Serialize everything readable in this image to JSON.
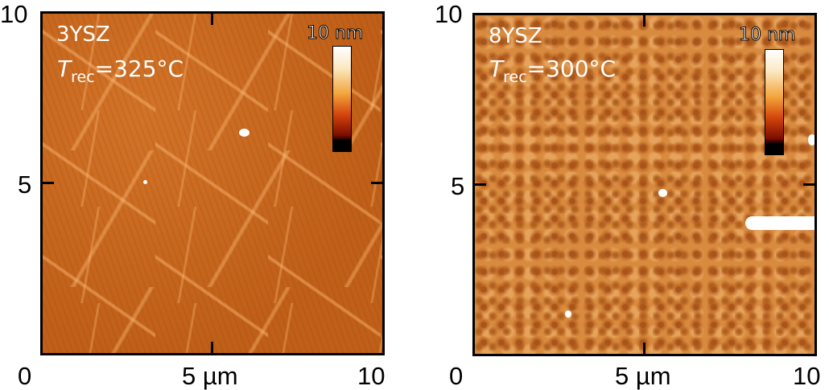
{
  "panels": [
    {
      "sample": "3YSZ",
      "t_symbol": "T",
      "t_sub": "rec",
      "t_value": "=325°C",
      "colorbar_label": "10 nm",
      "colormap": [
        "#000000",
        "#7a0d00",
        "#d3450c",
        "#f3a53c",
        "#fbe9c4",
        "#ffffff"
      ],
      "y_ticks": [
        "10",
        "5",
        "0"
      ],
      "x_ticks": [
        "5 µm",
        "10"
      ]
    },
    {
      "sample": "8YSZ",
      "t_symbol": "T",
      "t_sub": "rec",
      "t_value": "=300°C",
      "colorbar_label": "10 nm",
      "colormap": [
        "#000000",
        "#7a0d00",
        "#d3450c",
        "#f3a53c",
        "#fbe9c4",
        "#ffffff"
      ],
      "y_ticks": [
        "10",
        "5",
        "0"
      ],
      "x_ticks": [
        "5 µm",
        "10"
      ]
    }
  ]
}
